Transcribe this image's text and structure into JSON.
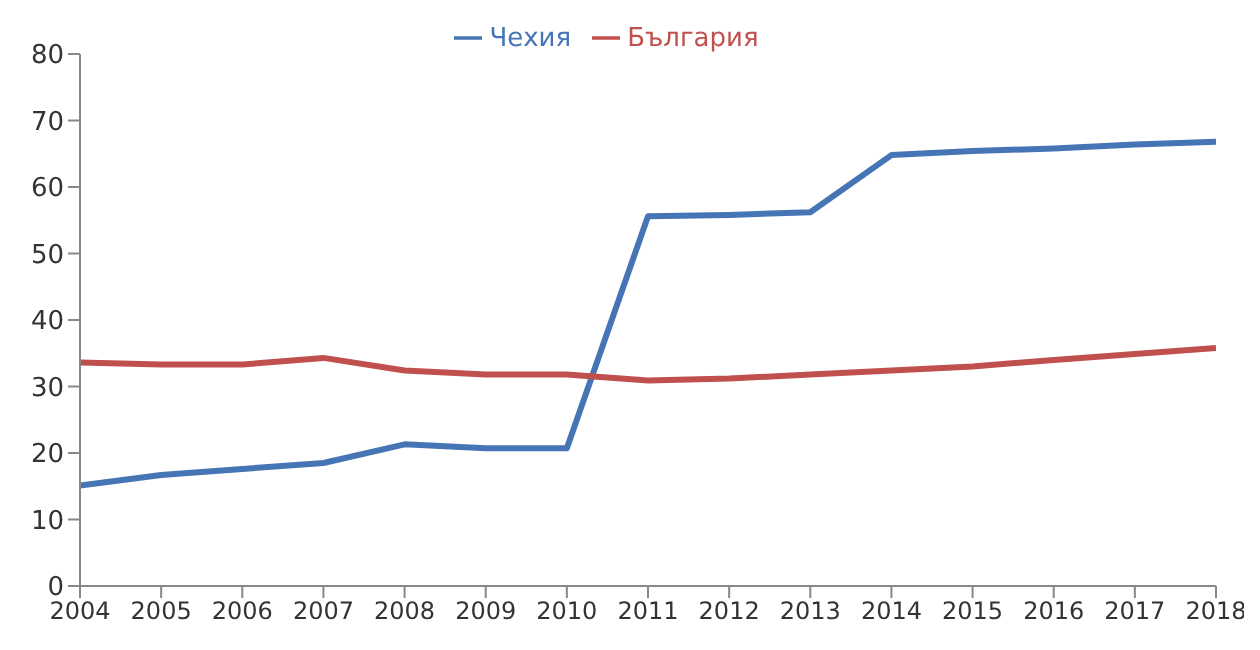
{
  "chart_data": {
    "type": "line",
    "categories": [
      "2004",
      "2005",
      "2006",
      "2007",
      "2008",
      "2009",
      "2010",
      "2011",
      "2012",
      "2013",
      "2014",
      "2015",
      "2016",
      "2017",
      "2018"
    ],
    "series": [
      {
        "name": "Чехия",
        "color": "#4575b4",
        "values": [
          15.1,
          16.7,
          17.6,
          18.5,
          21.3,
          20.7,
          20.7,
          55.6,
          55.8,
          56.2,
          64.8,
          65.4,
          65.8,
          66.4,
          66.8
        ]
      },
      {
        "name": "България",
        "color": "#c0504d",
        "values": [
          33.6,
          33.3,
          33.3,
          34.3,
          32.4,
          31.8,
          31.8,
          30.9,
          31.2,
          31.8,
          32.4,
          33.0,
          34.0,
          34.9,
          35.8
        ]
      }
    ],
    "ylim": [
      0,
      80
    ],
    "yticks": [
      0,
      10,
      20,
      30,
      40,
      50,
      60,
      70,
      80
    ],
    "grid": false,
    "legend": "top",
    "marker": "none",
    "line_style": "solid"
  }
}
